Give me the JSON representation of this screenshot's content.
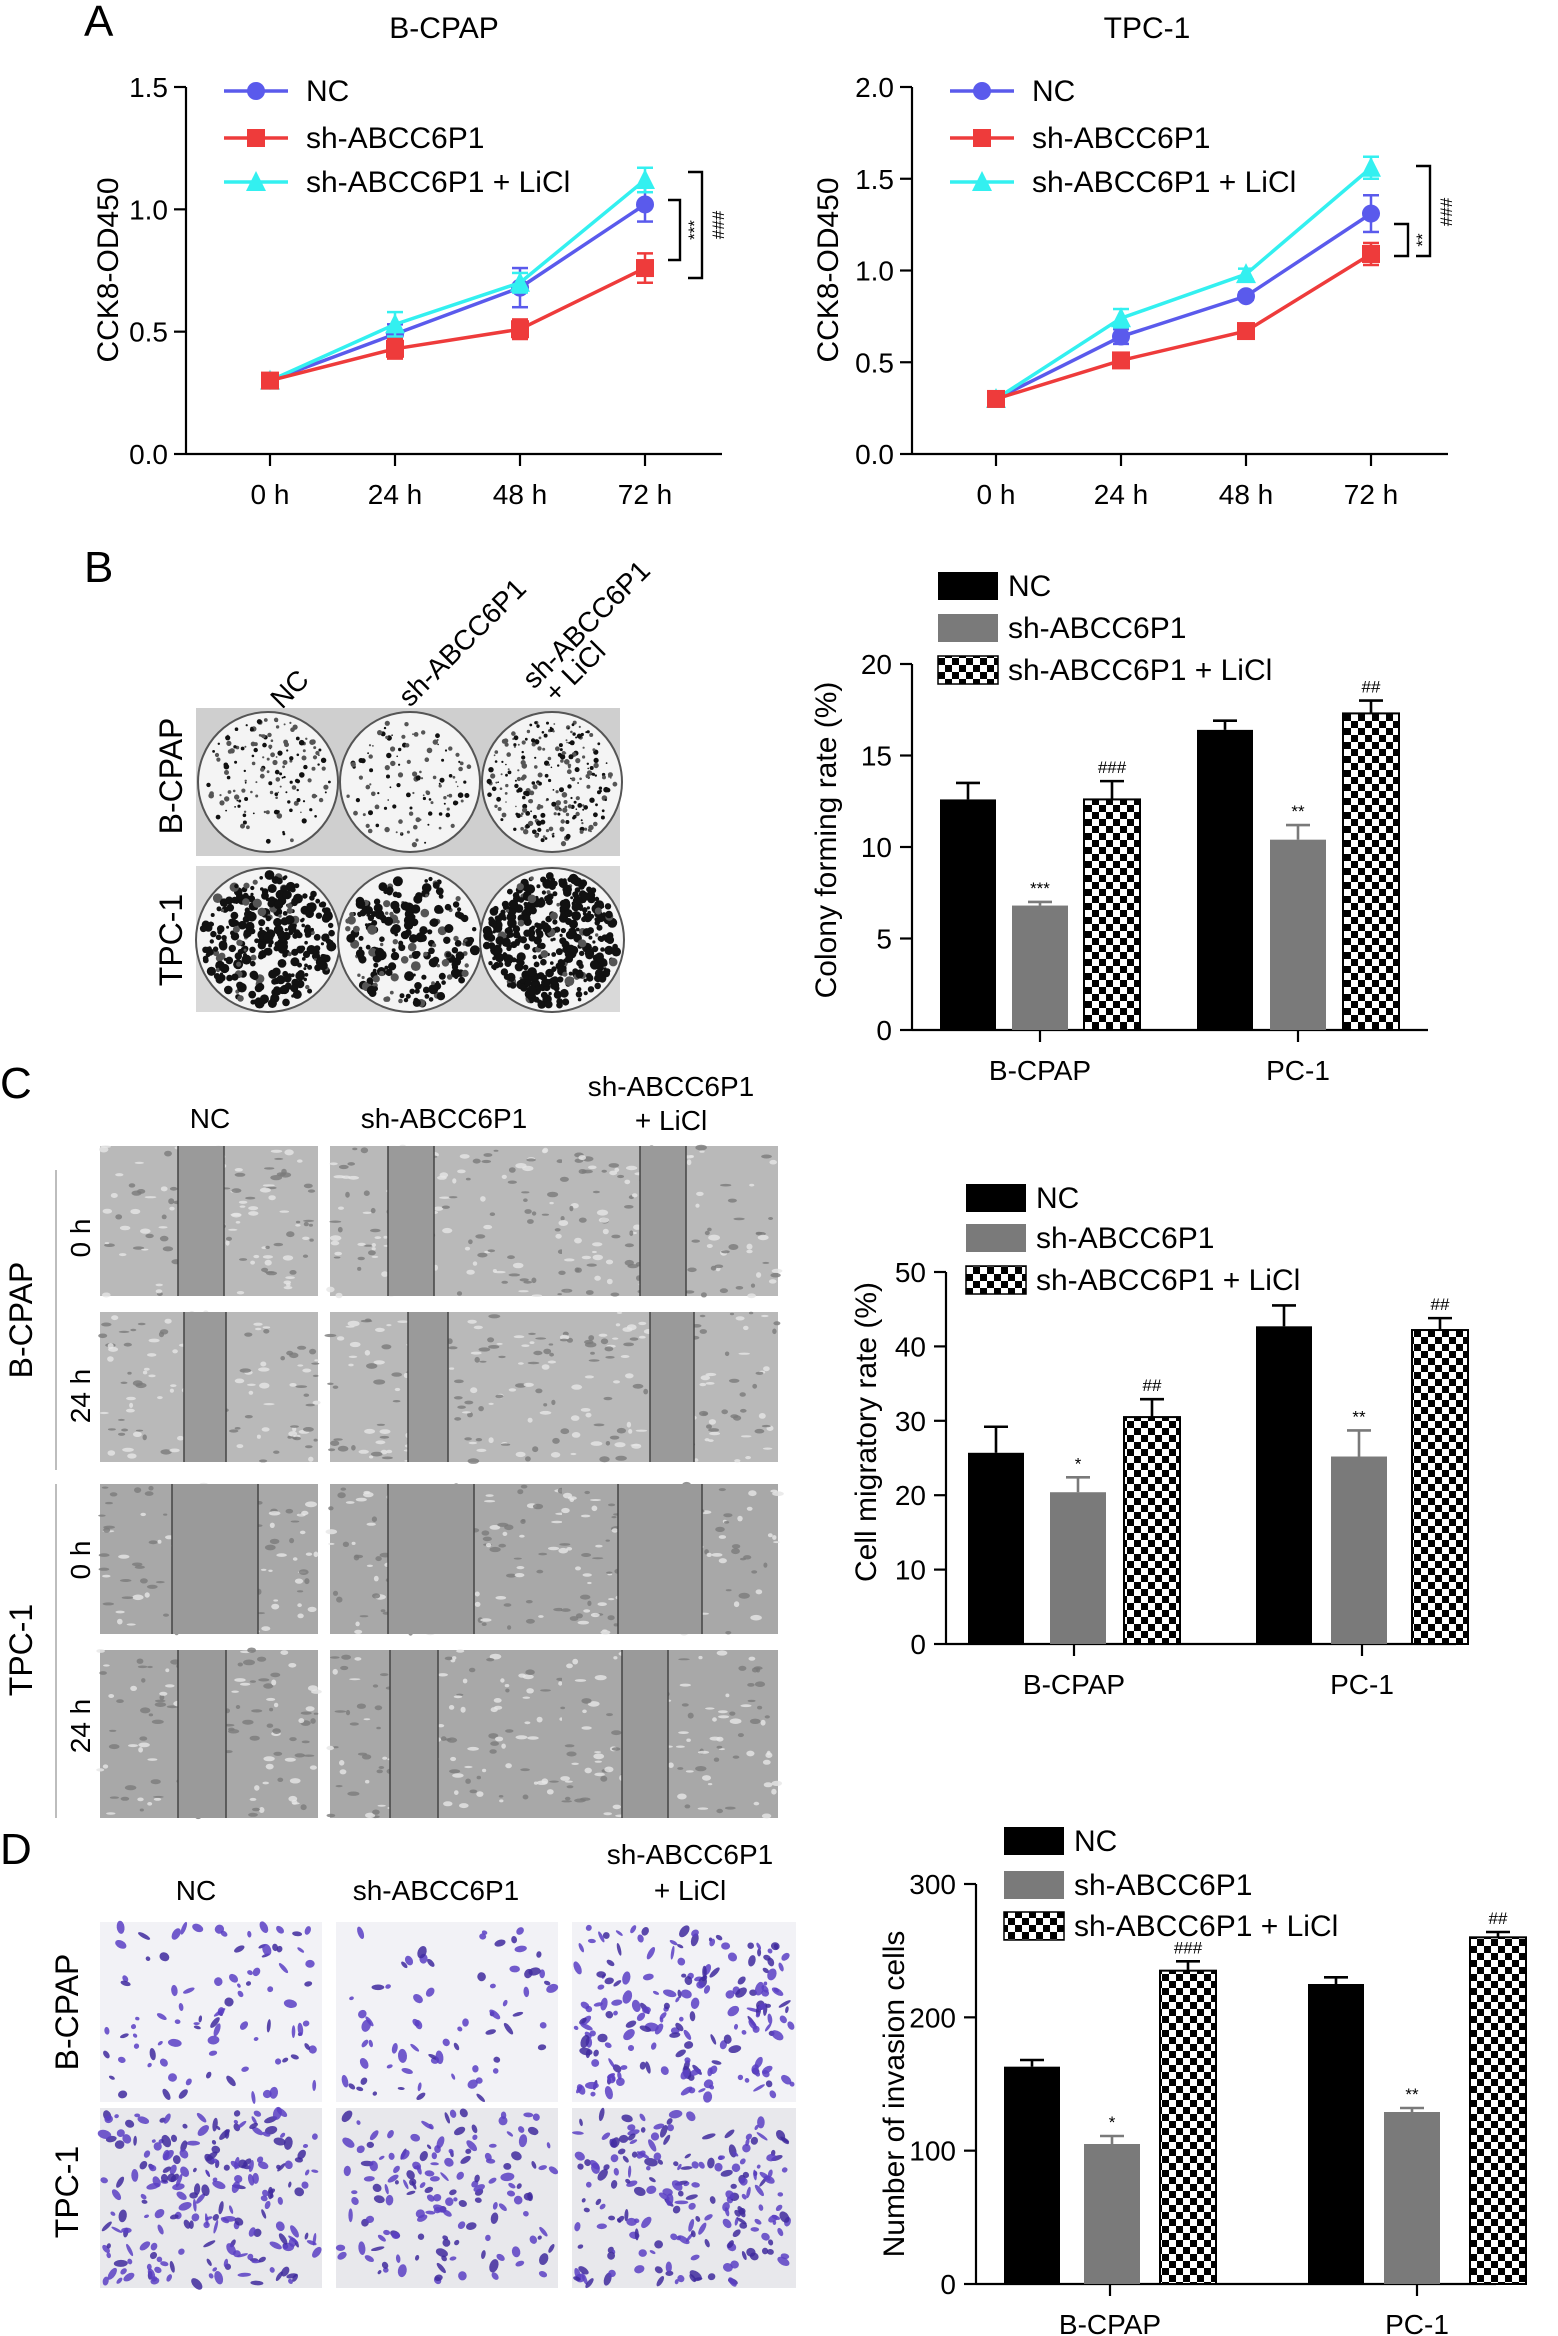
{
  "panels": {
    "a": "A",
    "b": "B",
    "c": "C",
    "d": "D"
  },
  "colors": {
    "nc_line": "#5a5aec",
    "sh_line": "#ee3b3b",
    "licl_line": "#33f0f0",
    "nc_bar": "#000000",
    "sh_bar": "#7a7a7a",
    "licl_bar": "checker-pattern",
    "invasion_stain": "#5b3fc4",
    "wound_bg": "#9a9a9a"
  },
  "icons": [
    "circle-marker-icon",
    "square-marker-icon",
    "triangle-marker-icon"
  ],
  "images": {
    "colony": {
      "cols": [
        "NC",
        "sh-ABCC6P1",
        "sh-ABCC6P1",
        "+ LiCl"
      ],
      "rows": [
        "B-CPAP",
        "TPC-1"
      ]
    },
    "wound": {
      "cols": [
        "NC",
        "sh-ABCC6P1",
        "sh-ABCC6P1",
        "+ LiCl"
      ],
      "groups": [
        "B-CPAP",
        "TPC-1"
      ],
      "times": [
        "0 h",
        "24 h",
        "0 h",
        "24 h"
      ]
    },
    "invasion": {
      "cols": [
        "NC",
        "sh-ABCC6P1",
        "sh-ABCC6P1",
        "+ LiCl"
      ],
      "rows": [
        "B-CPAP",
        "TPC-1"
      ]
    }
  },
  "chart_data": [
    {
      "type": "line",
      "title": "B-CPAP",
      "ylabel": "CCK8-OD450",
      "xlabel": "",
      "categories": [
        "0 h",
        "24 h",
        "48 h",
        "72 h"
      ],
      "ylim": [
        0,
        1.5
      ],
      "yticks": [
        "0.0",
        "0.5",
        "1.0",
        "1.5"
      ],
      "yticks_v": [
        0,
        0.5,
        1.0,
        1.5
      ],
      "series": [
        {
          "name": "NC",
          "values": [
            0.3,
            0.49,
            0.68,
            1.02
          ],
          "err": [
            0.01,
            0.04,
            0.08,
            0.07
          ],
          "marker": "circle"
        },
        {
          "name": "sh-ABCC6P1",
          "values": [
            0.3,
            0.43,
            0.51,
            0.76
          ],
          "err": [
            0.01,
            0.04,
            0.04,
            0.06
          ],
          "marker": "square"
        },
        {
          "name": "sh-ABCC6P1 + LiCl",
          "values": [
            0.3,
            0.53,
            0.7,
            1.12
          ],
          "err": [
            0.01,
            0.05,
            0.04,
            0.05
          ],
          "marker": "triangle"
        }
      ],
      "annotations": [
        "***",
        "###"
      ],
      "legend": "top-left"
    },
    {
      "type": "line",
      "title": "TPC-1",
      "ylabel": "CCK8-OD450",
      "xlabel": "",
      "categories": [
        "0 h",
        "24 h",
        "48 h",
        "72 h"
      ],
      "ylim": [
        0,
        2.0
      ],
      "yticks": [
        "0.0",
        "0.5",
        "1.0",
        "1.5",
        "2.0"
      ],
      "yticks_v": [
        0,
        0.5,
        1.0,
        1.5,
        2.0
      ],
      "series": [
        {
          "name": "NC",
          "values": [
            0.3,
            0.64,
            0.86,
            1.31
          ],
          "err": [
            0.01,
            0.04,
            0.02,
            0.1
          ],
          "marker": "circle"
        },
        {
          "name": "sh-ABCC6P1",
          "values": [
            0.3,
            0.51,
            0.67,
            1.09
          ],
          "err": [
            0.01,
            0.02,
            0.02,
            0.06
          ],
          "marker": "square"
        },
        {
          "name": "sh-ABCC6P1 + LiCl",
          "values": [
            0.3,
            0.74,
            0.98,
            1.56
          ],
          "err": [
            0.01,
            0.05,
            0.03,
            0.06
          ],
          "marker": "triangle"
        }
      ],
      "annotations": [
        "**",
        "###"
      ],
      "legend": "top-left"
    },
    {
      "type": "bar",
      "ylabel": "Colony forming rate (%)",
      "xlabel": "",
      "categories": [
        "B-CPAP",
        "PC-1"
      ],
      "ylim": [
        0,
        20
      ],
      "yticks": [
        "0",
        "5",
        "10",
        "15",
        "20"
      ],
      "yticks_v": [
        0,
        5,
        10,
        15,
        20
      ],
      "series": [
        {
          "name": "NC",
          "values": [
            12.6,
            16.4
          ],
          "err": [
            0.9,
            0.5
          ],
          "sig": [
            "",
            ""
          ]
        },
        {
          "name": "sh-ABCC6P1",
          "values": [
            6.8,
            10.4
          ],
          "err": [
            0.2,
            0.8
          ],
          "sig": [
            "***",
            "**"
          ]
        },
        {
          "name": "sh-ABCC6P1 + LiCl",
          "values": [
            12.6,
            17.3
          ],
          "err": [
            1.0,
            0.7
          ],
          "sig": [
            "###",
            "##"
          ]
        }
      ],
      "legend": "top"
    },
    {
      "type": "bar",
      "ylabel": "Cell migratory rate (%)",
      "xlabel": "",
      "categories": [
        "B-CPAP",
        "PC-1"
      ],
      "ylim": [
        0,
        50
      ],
      "yticks": [
        "0",
        "10",
        "20",
        "30",
        "40",
        "50"
      ],
      "yticks_v": [
        0,
        10,
        20,
        30,
        40,
        50
      ],
      "series": [
        {
          "name": "NC",
          "values": [
            25.7,
            42.7
          ],
          "err": [
            3.5,
            2.8
          ],
          "sig": [
            "",
            ""
          ]
        },
        {
          "name": "sh-ABCC6P1",
          "values": [
            20.4,
            25.2
          ],
          "err": [
            2.0,
            3.5
          ],
          "sig": [
            "*",
            "**"
          ]
        },
        {
          "name": "sh-ABCC6P1 + LiCl",
          "values": [
            30.5,
            42.2
          ],
          "err": [
            2.4,
            1.6
          ],
          "sig": [
            "##",
            "##"
          ]
        }
      ],
      "legend": "top"
    },
    {
      "type": "bar",
      "ylabel": "Number of invasion cells",
      "xlabel": "",
      "categories": [
        "B-CPAP",
        "PC-1"
      ],
      "ylim": [
        0,
        300
      ],
      "yticks": [
        "0",
        "100",
        "200",
        "300"
      ],
      "yticks_v": [
        0,
        100,
        200,
        300
      ],
      "series": [
        {
          "name": "NC",
          "values": [
            163,
            225
          ],
          "err": [
            5,
            5
          ],
          "sig": [
            "",
            ""
          ]
        },
        {
          "name": "sh-ABCC6P1",
          "values": [
            105,
            129
          ],
          "err": [
            6,
            3
          ],
          "sig": [
            "*",
            "**"
          ]
        },
        {
          "name": "sh-ABCC6P1 + LiCl",
          "values": [
            235,
            260
          ],
          "err": [
            7,
            4
          ],
          "sig": [
            "###",
            "##"
          ]
        }
      ],
      "legend": "top"
    }
  ]
}
